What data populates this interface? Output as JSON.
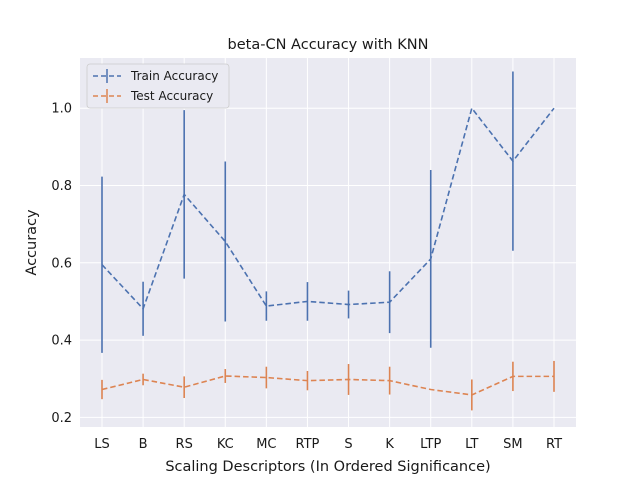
{
  "chart_data": {
    "type": "line",
    "title": "beta-CN Accuracy with KNN",
    "xlabel": "Scaling Descriptors (In Ordered Significance)",
    "ylabel": "Accuracy",
    "categories": [
      "LS",
      "B",
      "RS",
      "KC",
      "MC",
      "RTP",
      "S",
      "K",
      "LTP",
      "LT",
      "SM",
      "RT"
    ],
    "ylim": [
      0.175,
      1.13
    ],
    "yticks": [
      0.2,
      0.4,
      0.6,
      0.8,
      1.0
    ],
    "ytick_labels": [
      "0.2",
      "0.4",
      "0.6",
      "0.8",
      "1.0"
    ],
    "grid": true,
    "legend_position": "upper-left",
    "series": [
      {
        "name": "Train Accuracy",
        "color": "#4c72b0",
        "values": [
          0.595,
          0.481,
          0.777,
          0.655,
          0.488,
          0.5,
          0.492,
          0.498,
          0.61,
          1.0,
          0.863,
          1.0
        ],
        "errors": [
          0.228,
          0.07,
          0.218,
          0.207,
          0.038,
          0.05,
          0.036,
          0.08,
          0.23,
          0.0,
          0.232,
          0.0
        ]
      },
      {
        "name": "Test Accuracy",
        "color": "#dd8452",
        "values": [
          0.272,
          0.298,
          0.278,
          0.307,
          0.303,
          0.295,
          0.298,
          0.295,
          0.272,
          0.258,
          0.306,
          0.306
        ],
        "errors": [
          0.025,
          0.015,
          0.028,
          0.018,
          0.028,
          0.025,
          0.04,
          0.036,
          0.0,
          0.04,
          0.038,
          0.04
        ]
      }
    ]
  }
}
